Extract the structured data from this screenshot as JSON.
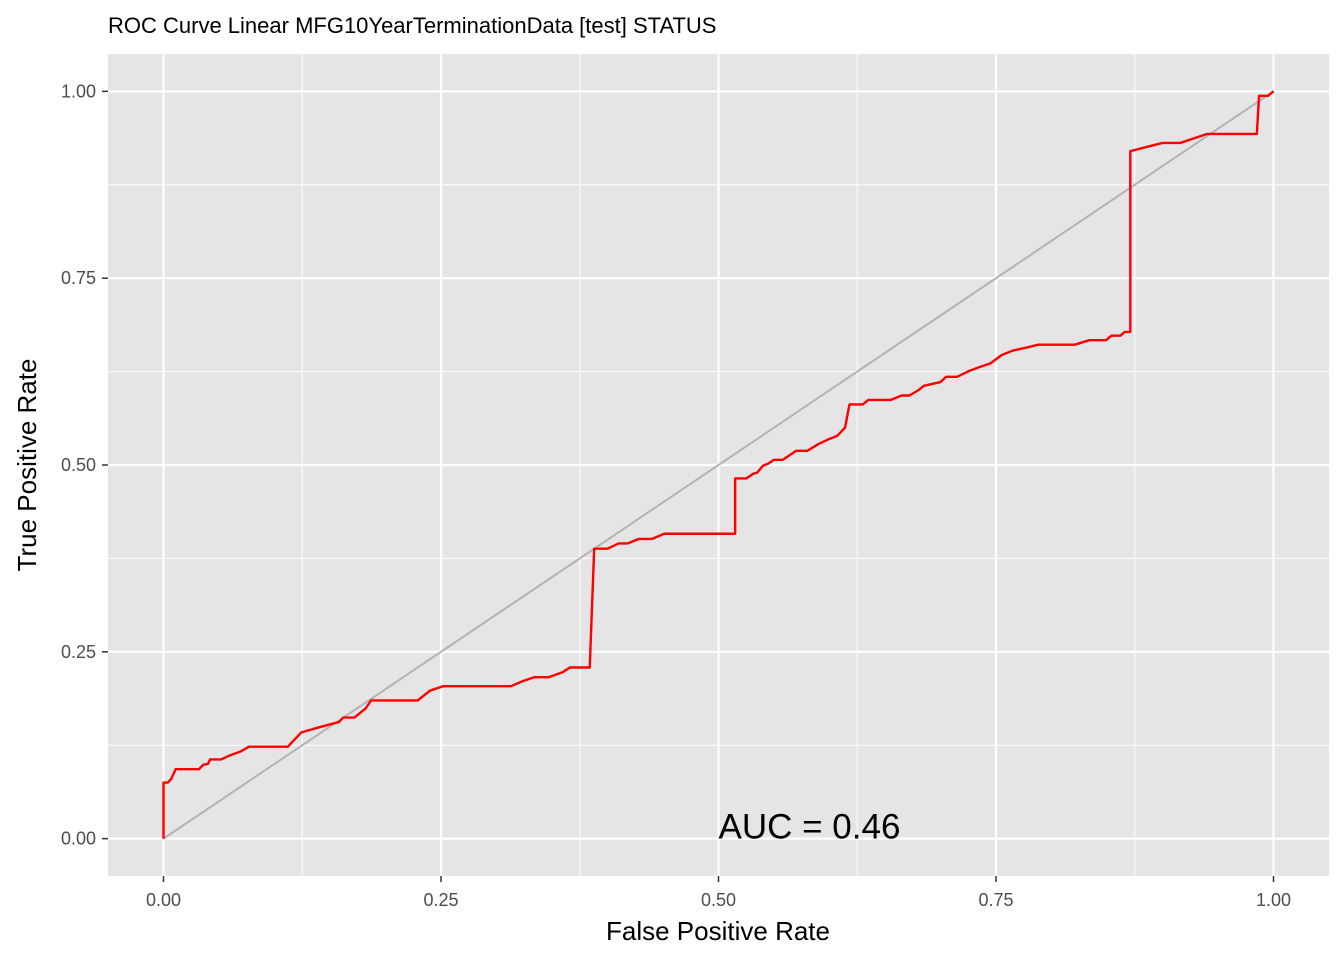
{
  "chart_data": {
    "type": "line",
    "title": "ROC Curve Linear MFG10YearTerminationData [test] STATUS",
    "xlabel": "False Positive Rate",
    "ylabel": "True Positive Rate",
    "xlim": [
      -0.05,
      1.05
    ],
    "ylim": [
      -0.05,
      1.05
    ],
    "x_ticks": [
      0,
      0.25,
      0.5,
      0.75,
      1
    ],
    "x_tick_labels": [
      "0.00",
      "0.25",
      "0.50",
      "0.75",
      "1.00"
    ],
    "y_ticks": [
      0,
      0.25,
      0.5,
      0.75,
      1
    ],
    "y_tick_labels": [
      "0.00",
      "0.25",
      "0.50",
      "0.75",
      "1.00"
    ],
    "grid": true,
    "annotation": {
      "text": "AUC = 0.46",
      "x": 0.5,
      "y": 0.0
    },
    "colors": {
      "panel": "#e5e5e5",
      "grid": "#ffffff",
      "roc": "#ff0000",
      "diagonal": "#b3b3b3",
      "tick": "#333333"
    },
    "series": [
      {
        "color": "#ff0000",
        "points": [
          [
            0.0,
            0.0
          ],
          [
            0.0,
            0.075
          ],
          [
            0.004,
            0.075
          ],
          [
            0.007,
            0.08
          ],
          [
            0.011,
            0.093
          ],
          [
            0.032,
            0.093
          ],
          [
            0.036,
            0.099
          ],
          [
            0.04,
            0.1
          ],
          [
            0.042,
            0.106
          ],
          [
            0.052,
            0.106
          ],
          [
            0.059,
            0.111
          ],
          [
            0.07,
            0.117
          ],
          [
            0.077,
            0.123
          ],
          [
            0.112,
            0.123
          ],
          [
            0.124,
            0.142
          ],
          [
            0.14,
            0.149
          ],
          [
            0.158,
            0.156
          ],
          [
            0.162,
            0.162
          ],
          [
            0.172,
            0.162
          ],
          [
            0.182,
            0.174
          ],
          [
            0.187,
            0.185
          ],
          [
            0.229,
            0.185
          ],
          [
            0.24,
            0.198
          ],
          [
            0.252,
            0.204
          ],
          [
            0.313,
            0.204
          ],
          [
            0.324,
            0.211
          ],
          [
            0.334,
            0.216
          ],
          [
            0.347,
            0.216
          ],
          [
            0.36,
            0.223
          ],
          [
            0.366,
            0.229
          ],
          [
            0.384,
            0.229
          ],
          [
            0.388,
            0.388
          ],
          [
            0.4,
            0.388
          ],
          [
            0.41,
            0.395
          ],
          [
            0.418,
            0.395
          ],
          [
            0.428,
            0.401
          ],
          [
            0.44,
            0.401
          ],
          [
            0.451,
            0.408
          ],
          [
            0.515,
            0.408
          ],
          [
            0.515,
            0.482
          ],
          [
            0.525,
            0.482
          ],
          [
            0.531,
            0.488
          ],
          [
            0.535,
            0.49
          ],
          [
            0.54,
            0.499
          ],
          [
            0.545,
            0.502
          ],
          [
            0.55,
            0.507
          ],
          [
            0.558,
            0.507
          ],
          [
            0.565,
            0.514
          ],
          [
            0.57,
            0.519
          ],
          [
            0.58,
            0.519
          ],
          [
            0.59,
            0.528
          ],
          [
            0.6,
            0.535
          ],
          [
            0.607,
            0.539
          ],
          [
            0.614,
            0.55
          ],
          [
            0.618,
            0.581
          ],
          [
            0.63,
            0.581
          ],
          [
            0.635,
            0.587
          ],
          [
            0.655,
            0.587
          ],
          [
            0.665,
            0.593
          ],
          [
            0.672,
            0.593
          ],
          [
            0.68,
            0.6
          ],
          [
            0.685,
            0.606
          ],
          [
            0.7,
            0.611
          ],
          [
            0.705,
            0.618
          ],
          [
            0.715,
            0.618
          ],
          [
            0.726,
            0.626
          ],
          [
            0.735,
            0.631
          ],
          [
            0.745,
            0.636
          ],
          [
            0.755,
            0.647
          ],
          [
            0.765,
            0.653
          ],
          [
            0.78,
            0.658
          ],
          [
            0.788,
            0.661
          ],
          [
            0.821,
            0.661
          ],
          [
            0.834,
            0.667
          ],
          [
            0.849,
            0.667
          ],
          [
            0.854,
            0.673
          ],
          [
            0.862,
            0.673
          ],
          [
            0.866,
            0.678
          ],
          [
            0.871,
            0.678
          ],
          [
            0.871,
            0.92
          ],
          [
            0.884,
            0.925
          ],
          [
            0.9,
            0.931
          ],
          [
            0.916,
            0.931
          ],
          [
            0.94,
            0.943
          ],
          [
            0.985,
            0.943
          ],
          [
            0.987,
            0.994
          ],
          [
            0.995,
            0.994
          ],
          [
            1.0,
            1.0
          ]
        ]
      },
      {
        "color": "#b3b3b3",
        "points": [
          [
            0,
            0
          ],
          [
            1,
            1
          ]
        ]
      }
    ]
  }
}
